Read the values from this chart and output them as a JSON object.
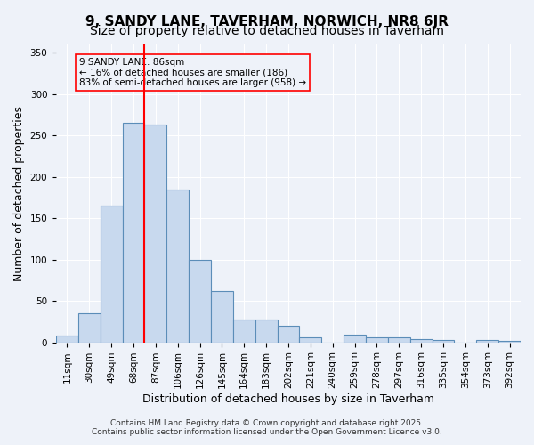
{
  "title_line1": "9, SANDY LANE, TAVERHAM, NORWICH, NR8 6JR",
  "title_line2": "Size of property relative to detached houses in Taverham",
  "xlabel": "Distribution of detached houses by size in Taverham",
  "ylabel": "Number of detached properties",
  "annotation_line1": "9 SANDY LANE: 86sqm",
  "annotation_line2": "← 16% of detached houses are smaller (186)",
  "annotation_line3": "83% of semi-detached houses are larger (958) →",
  "footer_line1": "Contains HM Land Registry data © Crown copyright and database right 2025.",
  "footer_line2": "Contains public sector information licensed under the Open Government Licence v3.0.",
  "bin_labels": [
    "11sqm",
    "30sqm",
    "49sqm",
    "68sqm",
    "87sqm",
    "106sqm",
    "126sqm",
    "145sqm",
    "164sqm",
    "183sqm",
    "202sqm",
    "221sqm",
    "240sqm",
    "259sqm",
    "278sqm",
    "297sqm",
    "316sqm",
    "335sqm",
    "354sqm",
    "373sqm",
    "392sqm"
  ],
  "bar_heights": [
    8,
    35,
    165,
    265,
    263,
    185,
    100,
    62,
    28,
    28,
    20,
    6,
    0,
    9,
    6,
    6,
    4,
    3,
    0,
    3,
    2
  ],
  "bar_color": "#c8d9ee",
  "bar_edge_color": "#5b8db8",
  "bg_color": "#eef2f9",
  "grid_color": "#ffffff",
  "vline_color": "red",
  "ylim": [
    0,
    360
  ],
  "yticks": [
    0,
    50,
    100,
    150,
    200,
    250,
    300,
    350
  ],
  "annotation_box_color": "red",
  "title_fontsize": 11,
  "subtitle_fontsize": 10,
  "axis_fontsize": 9,
  "tick_fontsize": 7.5,
  "annotation_fontsize": 7.5,
  "footer_fontsize": 6.5
}
